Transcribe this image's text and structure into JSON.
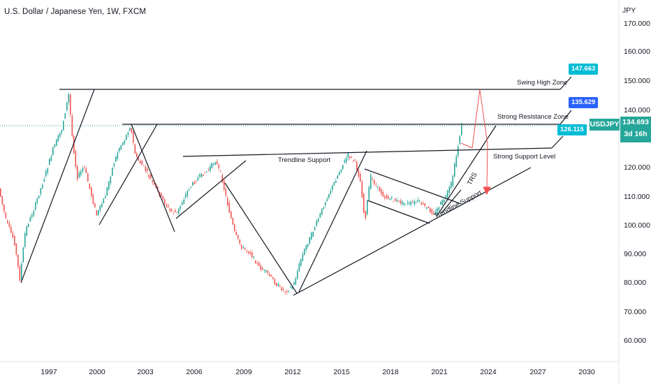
{
  "header": {
    "title": "U.S. Dollar / Japanese Yen, 1W, FXCM"
  },
  "price_axis": {
    "currency": "JPY",
    "ticks": [
      "170.000",
      "160.000",
      "150.000",
      "140.000",
      "120.000",
      "110.000",
      "100.000",
      "90.000",
      "80.000",
      "70.000",
      "60.000"
    ]
  },
  "time_axis": {
    "ticks": [
      "1997",
      "2000",
      "2003",
      "2006",
      "2009",
      "2012",
      "2015",
      "2018",
      "2021",
      "2024",
      "2027",
      "2030"
    ]
  },
  "annotations": {
    "swing_high": "Swing High Zone",
    "strong_resistance": "Strong Resistance Zone",
    "strong_support": "Strong Support Level",
    "trendline_support_top": "Trendline Support",
    "trendline_support_bottom": "Trendline Support",
    "trs": "TRS"
  },
  "price_tags": {
    "swing_high": "147.663",
    "resistance": "135.629",
    "support": "126.115"
  },
  "current": {
    "symbol": "USDJPY",
    "price": "134.693",
    "countdown": "3d 16h"
  },
  "colors": {
    "up": "#26a69a",
    "down": "#ef5350",
    "tag_cyan": "#00bcd4",
    "tag_blue": "#2962ff",
    "projection": "#ef5350"
  }
}
